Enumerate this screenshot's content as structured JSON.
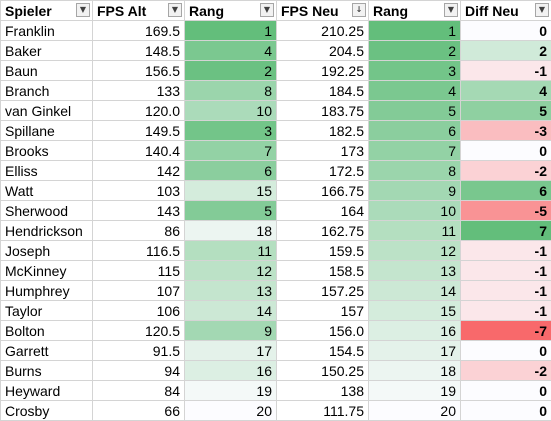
{
  "columns": [
    "Spieler",
    "FPS Alt",
    "Rang",
    "FPS Neu",
    "Rang",
    "Diff Neu"
  ],
  "icons": {
    "filter": "dropdown-arrow-icon",
    "sorted_filter": "sort-descending-filter-icon"
  },
  "rows": [
    {
      "name": "Franklin",
      "fps_alt": "169.5",
      "rang_alt": "1",
      "fps_neu": "210.25",
      "rang_neu": "1",
      "diff": "0"
    },
    {
      "name": "Baker",
      "fps_alt": "148.5",
      "rang_alt": "4",
      "fps_neu": "204.5",
      "rang_neu": "2",
      "diff": "2"
    },
    {
      "name": "Baun",
      "fps_alt": "156.5",
      "rang_alt": "2",
      "fps_neu": "192.25",
      "rang_neu": "3",
      "diff": "-1"
    },
    {
      "name": "Branch",
      "fps_alt": "133",
      "rang_alt": "8",
      "fps_neu": "184.5",
      "rang_neu": "4",
      "diff": "4"
    },
    {
      "name": "van Ginkel",
      "fps_alt": "120.0",
      "rang_alt": "10",
      "fps_neu": "183.75",
      "rang_neu": "5",
      "diff": "5"
    },
    {
      "name": "Spillane",
      "fps_alt": "149.5",
      "rang_alt": "3",
      "fps_neu": "182.5",
      "rang_neu": "6",
      "diff": "-3"
    },
    {
      "name": "Brooks",
      "fps_alt": "140.4",
      "rang_alt": "7",
      "fps_neu": "173",
      "rang_neu": "7",
      "diff": "0"
    },
    {
      "name": "Elliss",
      "fps_alt": "142",
      "rang_alt": "6",
      "fps_neu": "172.5",
      "rang_neu": "8",
      "diff": "-2"
    },
    {
      "name": "Watt",
      "fps_alt": "103",
      "rang_alt": "15",
      "fps_neu": "166.75",
      "rang_neu": "9",
      "diff": "6"
    },
    {
      "name": "Sherwood",
      "fps_alt": "143",
      "rang_alt": "5",
      "fps_neu": "164",
      "rang_neu": "10",
      "diff": "-5"
    },
    {
      "name": "Hendrickson",
      "fps_alt": "86",
      "rang_alt": "18",
      "fps_neu": "162.75",
      "rang_neu": "11",
      "diff": "7"
    },
    {
      "name": "Joseph",
      "fps_alt": "116.5",
      "rang_alt": "11",
      "fps_neu": "159.5",
      "rang_neu": "12",
      "diff": "-1"
    },
    {
      "name": "McKinney",
      "fps_alt": "115",
      "rang_alt": "12",
      "fps_neu": "158.5",
      "rang_neu": "13",
      "diff": "-1"
    },
    {
      "name": "Humphrey",
      "fps_alt": "107",
      "rang_alt": "13",
      "fps_neu": "157.25",
      "rang_neu": "14",
      "diff": "-1"
    },
    {
      "name": "Taylor",
      "fps_alt": "106",
      "rang_alt": "14",
      "fps_neu": "157",
      "rang_neu": "15",
      "diff": "-1"
    },
    {
      "name": "Bolton",
      "fps_alt": "120.5",
      "rang_alt": "9",
      "fps_neu": "156.0",
      "rang_neu": "16",
      "diff": "-7"
    },
    {
      "name": "Garrett",
      "fps_alt": "91.5",
      "rang_alt": "17",
      "fps_neu": "154.5",
      "rang_neu": "17",
      "diff": "0"
    },
    {
      "name": "Burns",
      "fps_alt": "94",
      "rang_alt": "16",
      "fps_neu": "150.25",
      "rang_neu": "18",
      "diff": "-2"
    },
    {
      "name": "Heyward",
      "fps_alt": "84",
      "rang_alt": "19",
      "fps_neu": "138",
      "rang_neu": "19",
      "diff": "0"
    },
    {
      "name": "Crosby",
      "fps_alt": "66",
      "rang_alt": "20",
      "fps_neu": "111.75",
      "rang_neu": "20",
      "diff": "0"
    }
  ],
  "colors": {
    "rank_best": "#63be7b",
    "rank_worst": "#fcfcff",
    "diff_positive": "#63be7b",
    "diff_negative": "#f8696b",
    "diff_neutral": "#fcfcff",
    "grid": "#d4d4d4"
  }
}
